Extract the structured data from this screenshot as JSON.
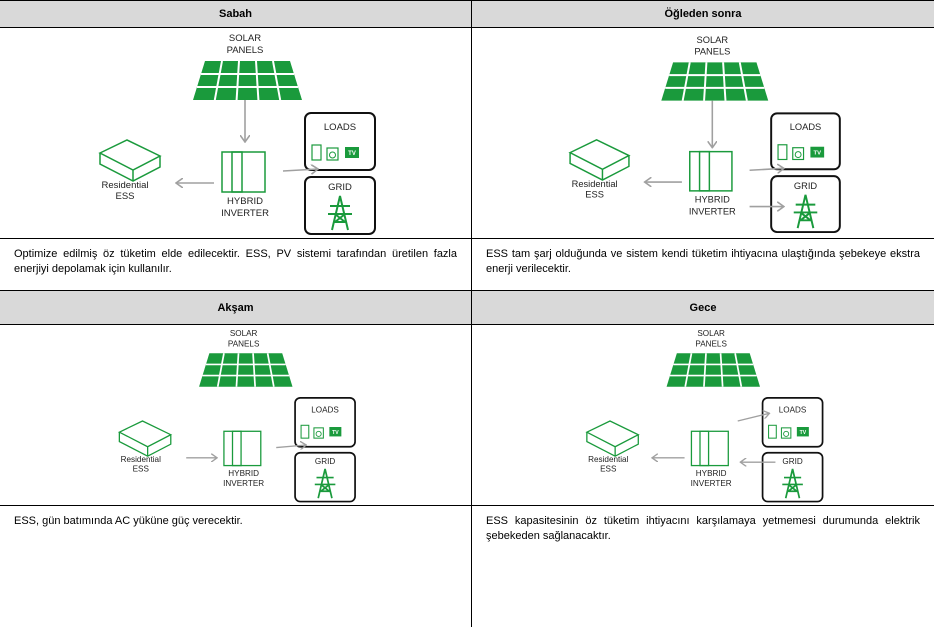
{
  "panels": [
    {
      "title": "Sabah",
      "labels": {
        "solar1": "SOLAR",
        "solar2": "PANELS",
        "loads": "LOADS",
        "tv": "TV",
        "grid": "GRID",
        "ess1": "Residential",
        "ess2": "ESS",
        "inv1": "HYBRID",
        "inv2": "INVERTER"
      },
      "description": "Optimize edilmiş öz tüketim elde edilecektir. ESS, PV sistemi tarafından üretilen fazla enerjiyi depolamak için kullanılır."
    },
    {
      "title": "Öğleden sonra",
      "labels": {
        "solar1": "SOLAR",
        "solar2": "PANELS",
        "loads": "LOADS",
        "tv": "TV",
        "grid": "GRID",
        "ess1": "Residential",
        "ess2": "ESS",
        "inv1": "HYBRID",
        "inv2": "INVERTER"
      },
      "description": "ESS tam şarj olduğunda ve sistem kendi tüketim ihtiyacına ulaştığında şebekeye ekstra enerji verilecektir."
    },
    {
      "title": "Akşam",
      "labels": {
        "solar1": "SOLAR",
        "solar2": "PANELS",
        "loads": "LOADS",
        "tv": "TV",
        "grid": "GRID",
        "ess1": "Residential",
        "ess2": "ESS",
        "inv1": "HYBRID",
        "inv2": "INVERTER"
      },
      "description": "ESS, gün batımında AC yüküne güç verecektir."
    },
    {
      "title": "Gece",
      "labels": {
        "solar1": "SOLAR",
        "solar2": "PANELS",
        "loads": "LOADS",
        "tv": "TV",
        "grid": "GRID",
        "ess1": "Residential",
        "ess2": "ESS",
        "inv1": "HYBRID",
        "inv2": "INVERTER"
      },
      "description": "ESS kapasitesinin öz tüketim ihtiyacını karşılamaya yetmemesi durumunda elektrik şebekeden sağlanacaktır."
    }
  ]
}
